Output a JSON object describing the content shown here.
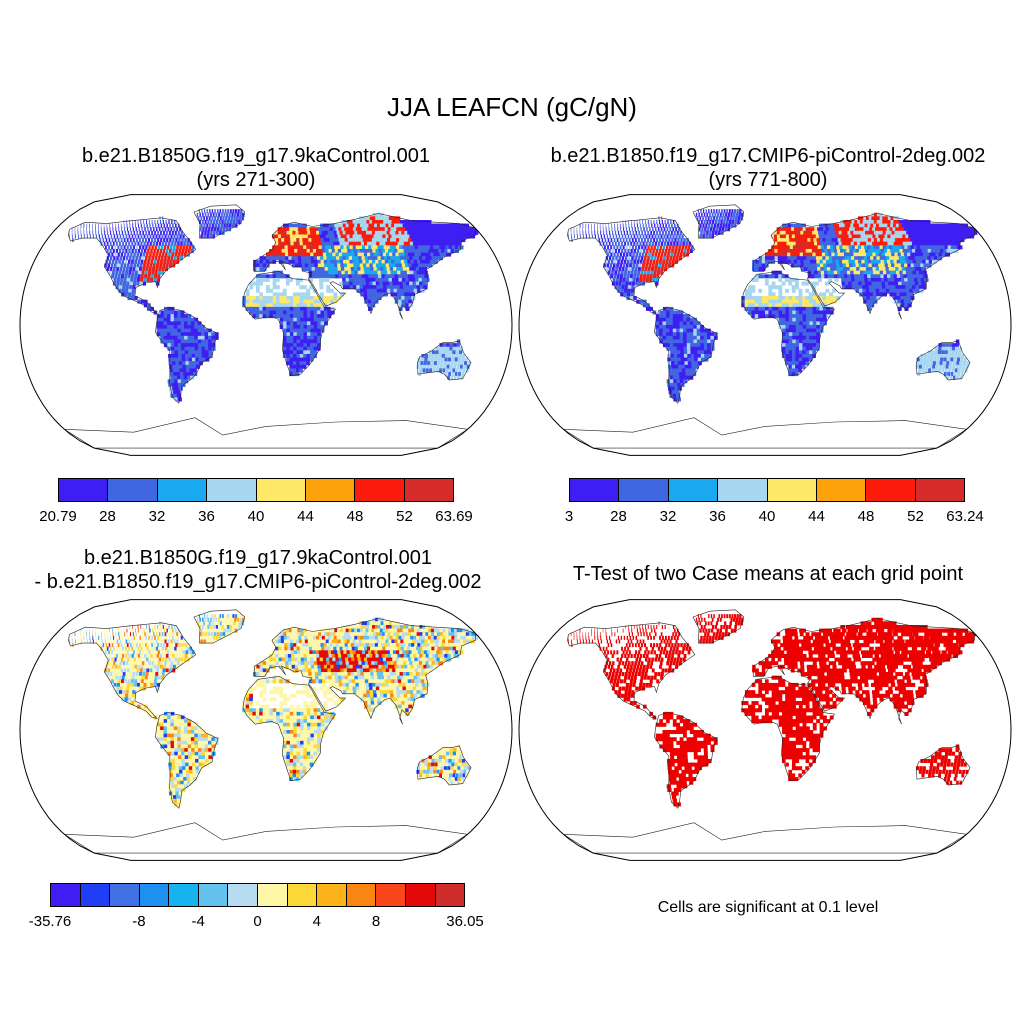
{
  "title": "JJA LEAFCN (gC/gN)",
  "panels": {
    "case1": {
      "title_line1": "b.e21.B1850G.f19_g17.9kaControl.001",
      "title_line2": "(yrs 271-300)",
      "colorbar": {
        "colors": [
          "#3f1ef3",
          "#4166e1",
          "#1aa9ee",
          "#a6d6f0",
          "#fde868",
          "#fca30c",
          "#fd1c0c",
          "#d62b2b"
        ],
        "labels": [
          "20.79",
          "28",
          "32",
          "36",
          "40",
          "44",
          "48",
          "52",
          "63.69"
        ]
      }
    },
    "case2": {
      "title_line1": "b.e21.B1850.f19_g17.CMIP6-piControl-2deg.002",
      "title_line2": "(yrs 771-800)",
      "colorbar": {
        "colors": [
          "#3f1ef3",
          "#4166e1",
          "#1aa9ee",
          "#a6d6f0",
          "#fde868",
          "#fca30c",
          "#fd1c0c",
          "#d62b2b"
        ],
        "labels": [
          "3",
          "28",
          "32",
          "36",
          "40",
          "44",
          "48",
          "52",
          "63.24"
        ]
      }
    },
    "diff": {
      "title_line1": "b.e21.B1850G.f19_g17.9kaControl.001",
      "title_line2": "- b.e21.B1850.f19_g17.CMIP6-piControl-2deg.002",
      "colorbar": {
        "colors": [
          "#3f1ef3",
          "#1f3ef5",
          "#4170e4",
          "#1e90f0",
          "#17b2f0",
          "#64c2ee",
          "#b7dcf1",
          "#fef7a8",
          "#fcd938",
          "#fcb41a",
          "#fa8512",
          "#f9461a",
          "#e40a0a",
          "#cf2c2c"
        ],
        "labels": [
          "-35.76",
          "-8",
          "-4",
          "0",
          "4",
          "8",
          "36.05"
        ]
      }
    },
    "ttest": {
      "title": "T-Test of two Case means at each grid point",
      "note": "Cells are significant at 0.1 level",
      "color": "#ee0000"
    }
  }
}
